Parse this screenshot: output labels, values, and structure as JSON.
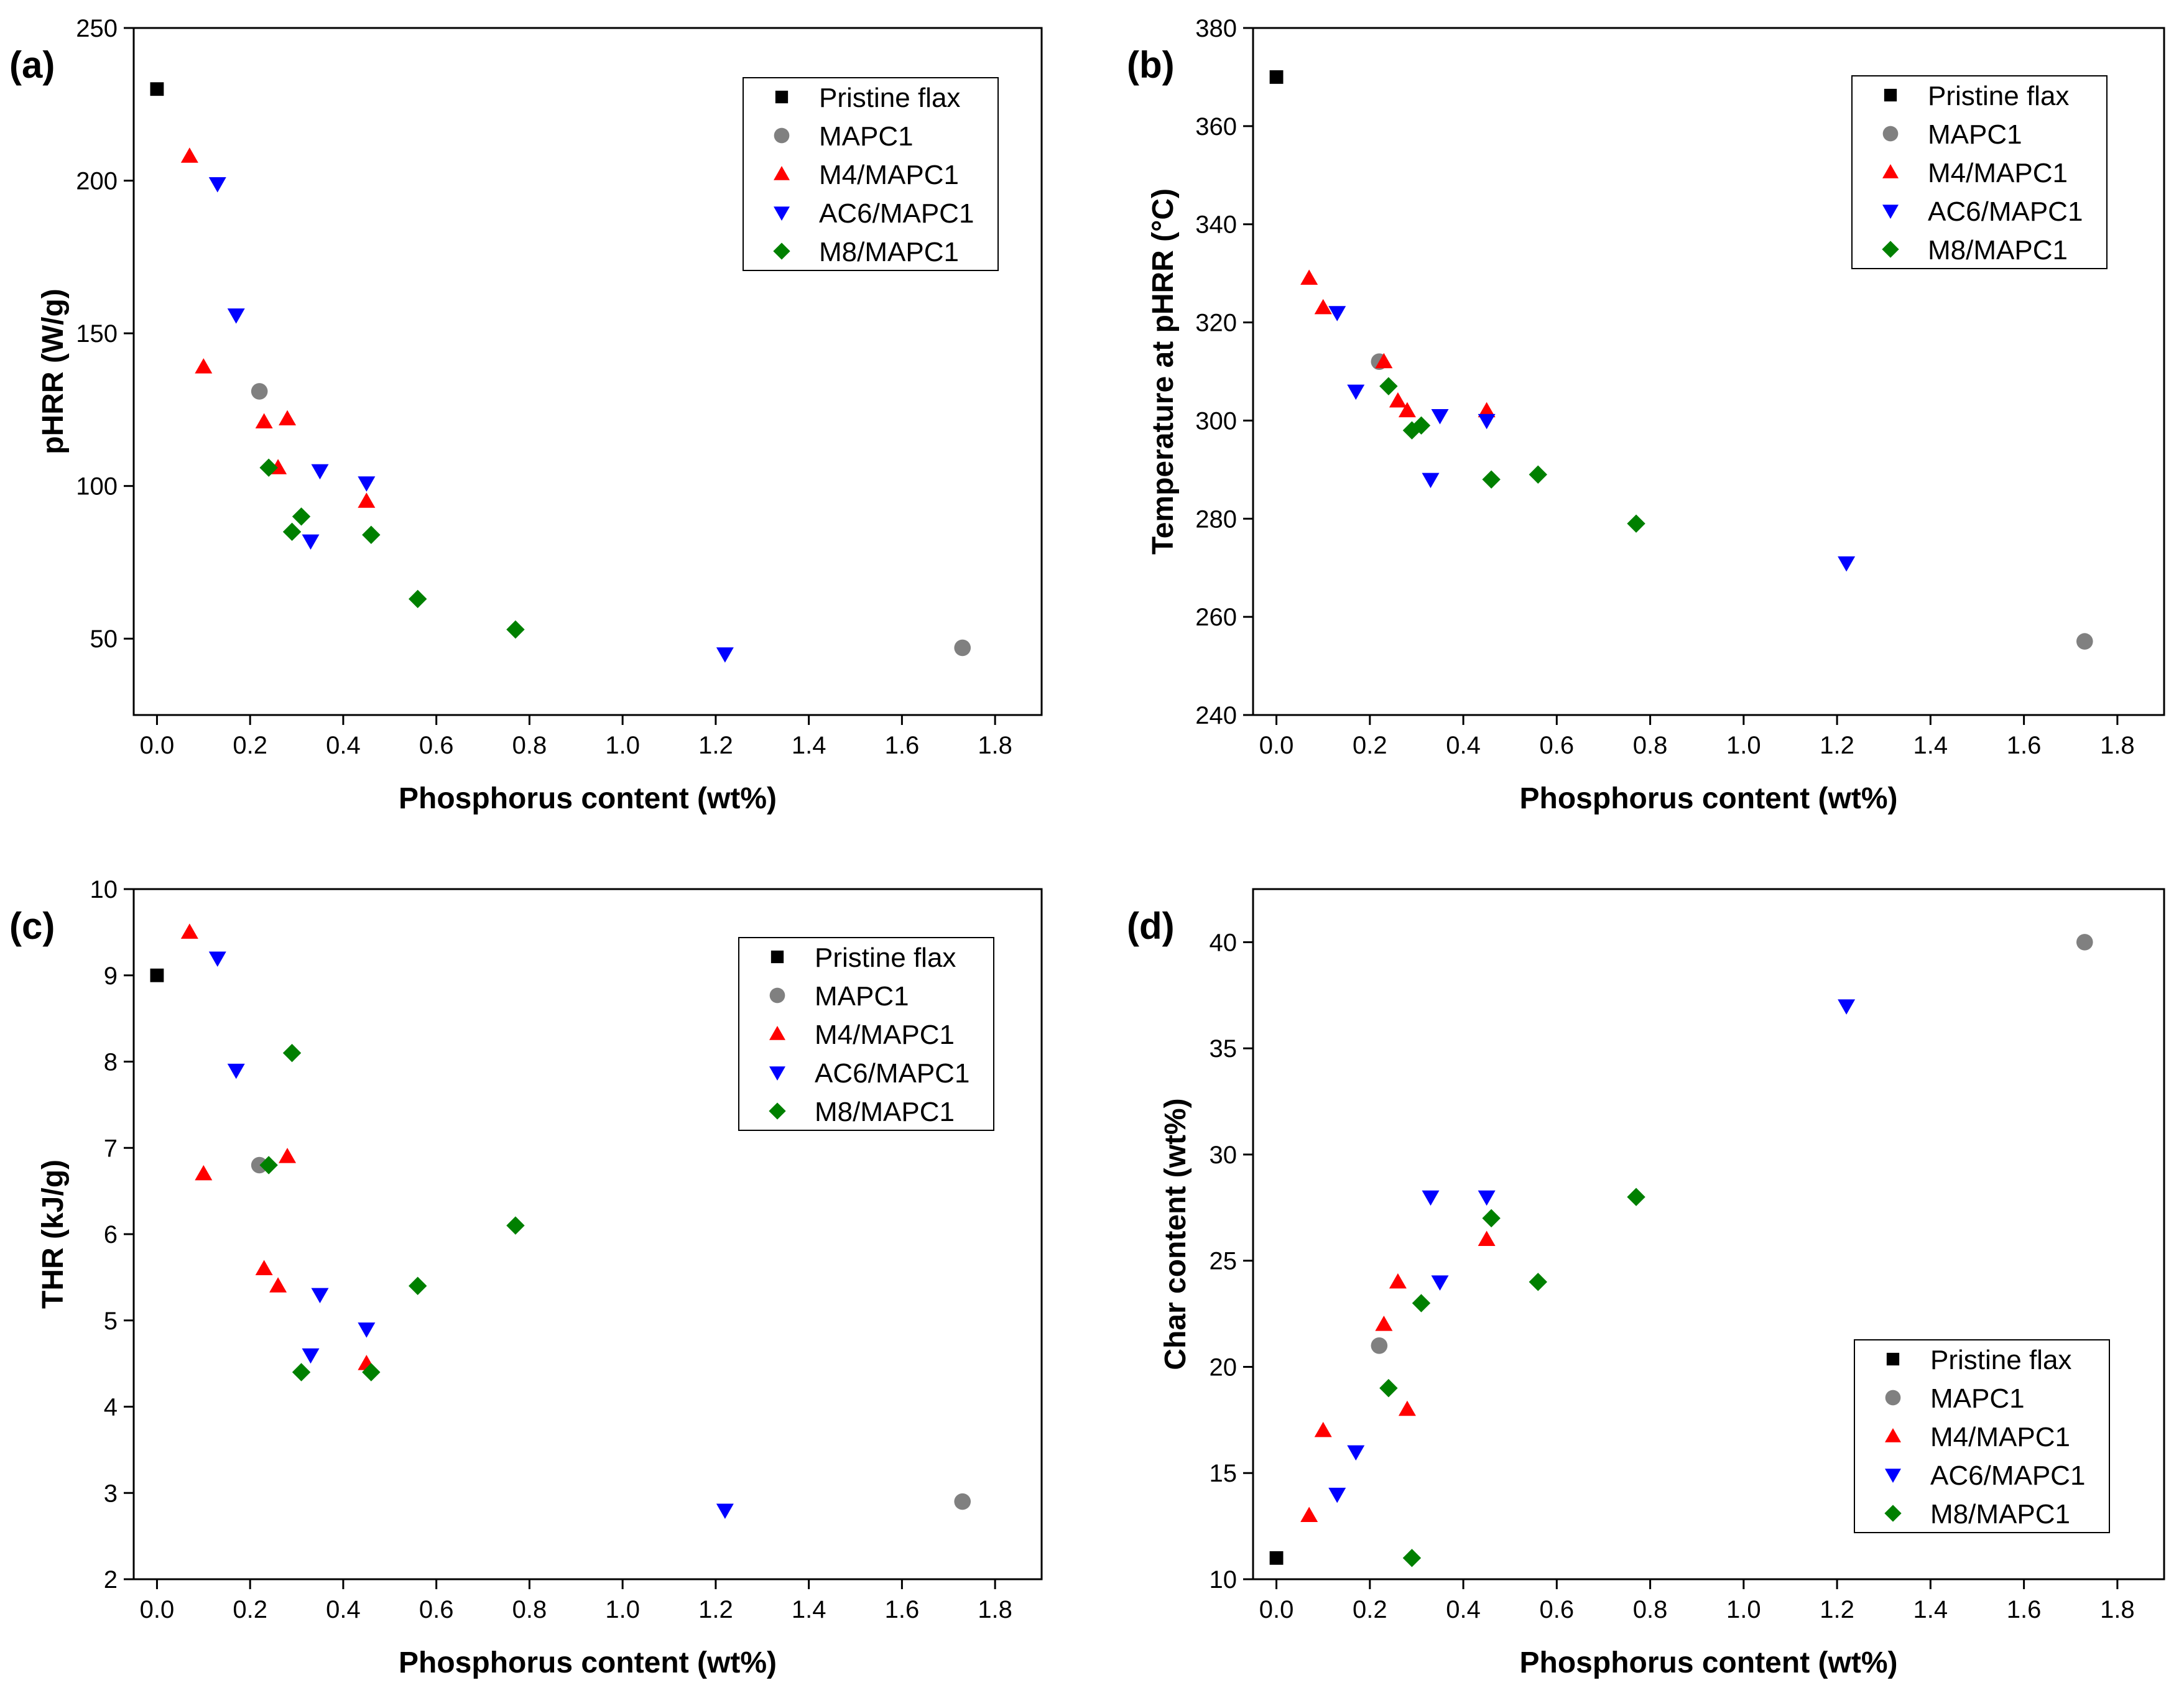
{
  "chart_data": [
    {
      "type": "scatter",
      "panel": "(a)",
      "xlabel": "Phosphorus content (wt%)",
      "ylabel": "pHRR (W/g)",
      "xlim": [
        -0.05,
        1.9
      ],
      "ylim": [
        25,
        250
      ],
      "xticks": [
        0.0,
        0.2,
        0.4,
        0.6,
        0.8,
        1.0,
        1.2,
        1.4,
        1.6,
        1.8
      ],
      "xtick_labels": [
        "0.0",
        "0.2",
        "0.4",
        "0.6",
        "0.8",
        "1.0",
        "1.2",
        "1.4",
        "1.6",
        "1.8"
      ],
      "yticks": [
        50,
        100,
        150,
        200,
        250
      ],
      "ytick_labels": [
        "50",
        "100",
        "150",
        "200",
        "250"
      ],
      "legend_position": "top-right",
      "series": [
        {
          "name": "Pristine flax",
          "marker": "square",
          "color": "#000000",
          "points": [
            [
              0.0,
              230
            ]
          ]
        },
        {
          "name": "MAPC1",
          "marker": "circle",
          "color": "#808080",
          "points": [
            [
              0.22,
              131
            ],
            [
              1.73,
              47
            ]
          ]
        },
        {
          "name": "M4/MAPC1",
          "marker": "triangle-up",
          "color": "#ff0000",
          "points": [
            [
              0.07,
              208
            ],
            [
              0.1,
              139
            ],
            [
              0.23,
              121
            ],
            [
              0.28,
              122
            ],
            [
              0.26,
              106
            ],
            [
              0.45,
              95
            ]
          ]
        },
        {
          "name": "AC6/MAPC1",
          "marker": "triangle-down",
          "color": "#0000ff",
          "points": [
            [
              0.13,
              199
            ],
            [
              0.17,
              156
            ],
            [
              0.35,
              105
            ],
            [
              0.45,
              101
            ],
            [
              0.33,
              82
            ],
            [
              1.22,
              45
            ]
          ]
        },
        {
          "name": "M8/MAPC1",
          "marker": "diamond",
          "color": "#008000",
          "points": [
            [
              0.24,
              106
            ],
            [
              0.29,
              85
            ],
            [
              0.31,
              90
            ],
            [
              0.46,
              84
            ],
            [
              0.56,
              63
            ],
            [
              0.77,
              53
            ]
          ]
        }
      ]
    },
    {
      "type": "scatter",
      "panel": "(b)",
      "xlabel": "Phosphorus content (wt%)",
      "ylabel": "Temperature at pHRR (°C)",
      "xlim": [
        -0.05,
        1.9
      ],
      "ylim": [
        240,
        380
      ],
      "xticks": [
        0.0,
        0.2,
        0.4,
        0.6,
        0.8,
        1.0,
        1.2,
        1.4,
        1.6,
        1.8
      ],
      "xtick_labels": [
        "0.0",
        "0.2",
        "0.4",
        "0.6",
        "0.8",
        "1.0",
        "1.2",
        "1.4",
        "1.6",
        "1.8"
      ],
      "yticks": [
        240,
        260,
        280,
        300,
        320,
        340,
        360,
        380
      ],
      "ytick_labels": [
        "240",
        "260",
        "280",
        "300",
        "320",
        "340",
        "360",
        "380"
      ],
      "legend_position": "top-right",
      "series": [
        {
          "name": "Pristine flax",
          "marker": "square",
          "color": "#000000",
          "points": [
            [
              0.0,
              370
            ]
          ]
        },
        {
          "name": "MAPC1",
          "marker": "circle",
          "color": "#808080",
          "points": [
            [
              0.22,
              312
            ],
            [
              1.73,
              255
            ]
          ]
        },
        {
          "name": "M4/MAPC1",
          "marker": "triangle-up",
          "color": "#ff0000",
          "points": [
            [
              0.07,
              329
            ],
            [
              0.1,
              323
            ],
            [
              0.23,
              312
            ],
            [
              0.26,
              304
            ],
            [
              0.28,
              302
            ],
            [
              0.45,
              302
            ]
          ]
        },
        {
          "name": "AC6/MAPC1",
          "marker": "triangle-down",
          "color": "#0000ff",
          "points": [
            [
              0.13,
              322
            ],
            [
              0.17,
              306
            ],
            [
              0.35,
              301
            ],
            [
              0.45,
              300
            ],
            [
              0.33,
              288
            ],
            [
              1.22,
              271
            ]
          ]
        },
        {
          "name": "M8/MAPC1",
          "marker": "diamond",
          "color": "#008000",
          "points": [
            [
              0.24,
              307
            ],
            [
              0.29,
              298
            ],
            [
              0.31,
              299
            ],
            [
              0.46,
              288
            ],
            [
              0.56,
              289
            ],
            [
              0.77,
              279
            ]
          ]
        }
      ]
    },
    {
      "type": "scatter",
      "panel": "(c)",
      "xlabel": "Phosphorus content (wt%)",
      "ylabel": "THR (kJ/g)",
      "xlim": [
        -0.05,
        1.9
      ],
      "ylim": [
        2,
        10
      ],
      "xticks": [
        0.0,
        0.2,
        0.4,
        0.6,
        0.8,
        1.0,
        1.2,
        1.4,
        1.6,
        1.8
      ],
      "xtick_labels": [
        "0.0",
        "0.2",
        "0.4",
        "0.6",
        "0.8",
        "1.0",
        "1.2",
        "1.4",
        "1.6",
        "1.8"
      ],
      "yticks": [
        2,
        3,
        4,
        5,
        6,
        7,
        8,
        9,
        10
      ],
      "ytick_labels": [
        "2",
        "3",
        "4",
        "5",
        "6",
        "7",
        "8",
        "9",
        "10"
      ],
      "legend_position": "top-right",
      "series": [
        {
          "name": "Pristine flax",
          "marker": "square",
          "color": "#000000",
          "points": [
            [
              0.0,
              9.0
            ]
          ]
        },
        {
          "name": "MAPC1",
          "marker": "circle",
          "color": "#808080",
          "points": [
            [
              0.22,
              6.8
            ],
            [
              1.73,
              2.9
            ]
          ]
        },
        {
          "name": "M4/MAPC1",
          "marker": "triangle-up",
          "color": "#ff0000",
          "points": [
            [
              0.07,
              9.5
            ],
            [
              0.1,
              6.7
            ],
            [
              0.28,
              6.9
            ],
            [
              0.23,
              5.6
            ],
            [
              0.26,
              5.4
            ],
            [
              0.45,
              4.5
            ]
          ]
        },
        {
          "name": "AC6/MAPC1",
          "marker": "triangle-down",
          "color": "#0000ff",
          "points": [
            [
              0.13,
              9.2
            ],
            [
              0.17,
              7.9
            ],
            [
              0.35,
              5.3
            ],
            [
              0.45,
              4.9
            ],
            [
              0.33,
              4.6
            ],
            [
              1.22,
              2.8
            ]
          ]
        },
        {
          "name": "M8/MAPC1",
          "marker": "diamond",
          "color": "#008000",
          "points": [
            [
              0.29,
              8.1
            ],
            [
              0.24,
              6.8
            ],
            [
              0.56,
              5.4
            ],
            [
              0.77,
              6.1
            ],
            [
              0.31,
              4.4
            ],
            [
              0.46,
              4.4
            ]
          ]
        }
      ]
    },
    {
      "type": "scatter",
      "panel": "(d)",
      "xlabel": "Phosphorus content (wt%)",
      "ylabel": "Char content (wt%)",
      "xlim": [
        -0.05,
        1.9
      ],
      "ylim": [
        10,
        42.5
      ],
      "xticks": [
        0.0,
        0.2,
        0.4,
        0.6,
        0.8,
        1.0,
        1.2,
        1.4,
        1.6,
        1.8
      ],
      "xtick_labels": [
        "0.0",
        "0.2",
        "0.4",
        "0.6",
        "0.8",
        "1.0",
        "1.2",
        "1.4",
        "1.6",
        "1.8"
      ],
      "yticks": [
        10,
        15,
        20,
        25,
        30,
        35,
        40
      ],
      "ytick_labels": [
        "10",
        "15",
        "20",
        "25",
        "30",
        "35",
        "40"
      ],
      "legend_position": "bottom-right",
      "series": [
        {
          "name": "Pristine flax",
          "marker": "square",
          "color": "#000000",
          "points": [
            [
              0.0,
              11
            ]
          ]
        },
        {
          "name": "MAPC1",
          "marker": "circle",
          "color": "#808080",
          "points": [
            [
              0.22,
              21
            ],
            [
              1.73,
              40
            ]
          ]
        },
        {
          "name": "M4/MAPC1",
          "marker": "triangle-up",
          "color": "#ff0000",
          "points": [
            [
              0.07,
              13
            ],
            [
              0.1,
              17
            ],
            [
              0.23,
              22
            ],
            [
              0.26,
              24
            ],
            [
              0.28,
              18
            ],
            [
              0.45,
              26
            ]
          ]
        },
        {
          "name": "AC6/MAPC1",
          "marker": "triangle-down",
          "color": "#0000ff",
          "points": [
            [
              0.13,
              14
            ],
            [
              0.17,
              16
            ],
            [
              0.33,
              28
            ],
            [
              0.35,
              24
            ],
            [
              0.45,
              28
            ],
            [
              1.22,
              37
            ]
          ]
        },
        {
          "name": "M8/MAPC1",
          "marker": "diamond",
          "color": "#008000",
          "points": [
            [
              0.24,
              19
            ],
            [
              0.29,
              11
            ],
            [
              0.31,
              23
            ],
            [
              0.46,
              27
            ],
            [
              0.56,
              24
            ],
            [
              0.77,
              28
            ]
          ]
        }
      ]
    }
  ]
}
